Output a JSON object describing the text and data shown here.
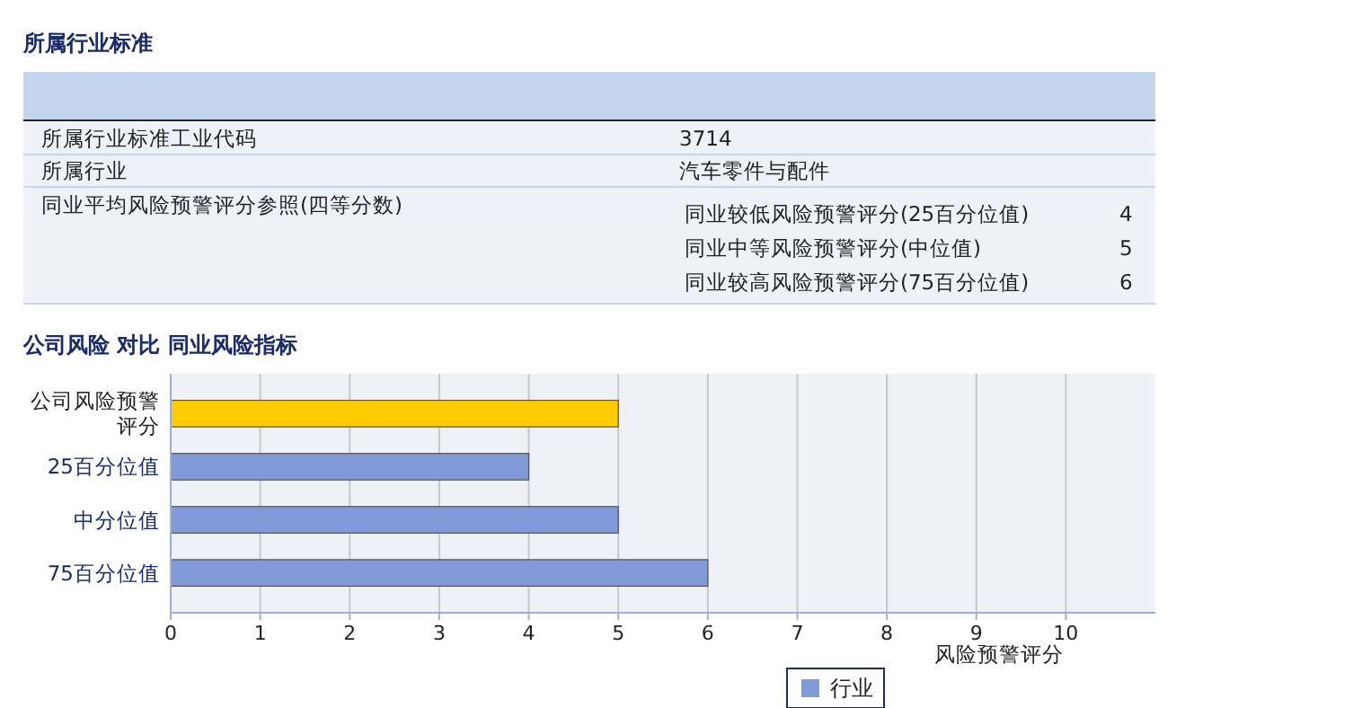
{
  "chart_data": [
    {
      "type": "other",
      "title": "所属行业标准",
      "annotations": [
        "所属行业标准工业代码",
        "3714",
        "所属行业",
        "汽车零件与配件",
        "同业平均风险预警评分参照(四等分数)",
        "同业较低风险预警评分(25百分位值)",
        "4",
        "同业中等风险预警评分(中位值)",
        "5",
        "同业较高风险预警评分(75百分位值)",
        "6"
      ]
    },
    {
      "type": "bar",
      "orientation": "horizontal",
      "title": "公司风险  对比  同业风险指标",
      "xlabel": "风险预警评分",
      "categories": [
        "公司风险预警评分",
        "25百分位值",
        "中分位值",
        "75百分位值"
      ],
      "series": [
        {
          "color": "#ffcc00",
          "values": [
            5,
            null,
            null,
            null
          ]
        },
        {
          "name": "行业",
          "color": "#7f9ad6",
          "values": [
            null,
            4,
            5,
            6
          ]
        }
      ],
      "xlim": [
        0,
        11
      ],
      "xticks": [
        0,
        1,
        2,
        3,
        4,
        5,
        6,
        7,
        8,
        9,
        10
      ],
      "grid": "x",
      "legend": "bottom"
    }
  ]
}
